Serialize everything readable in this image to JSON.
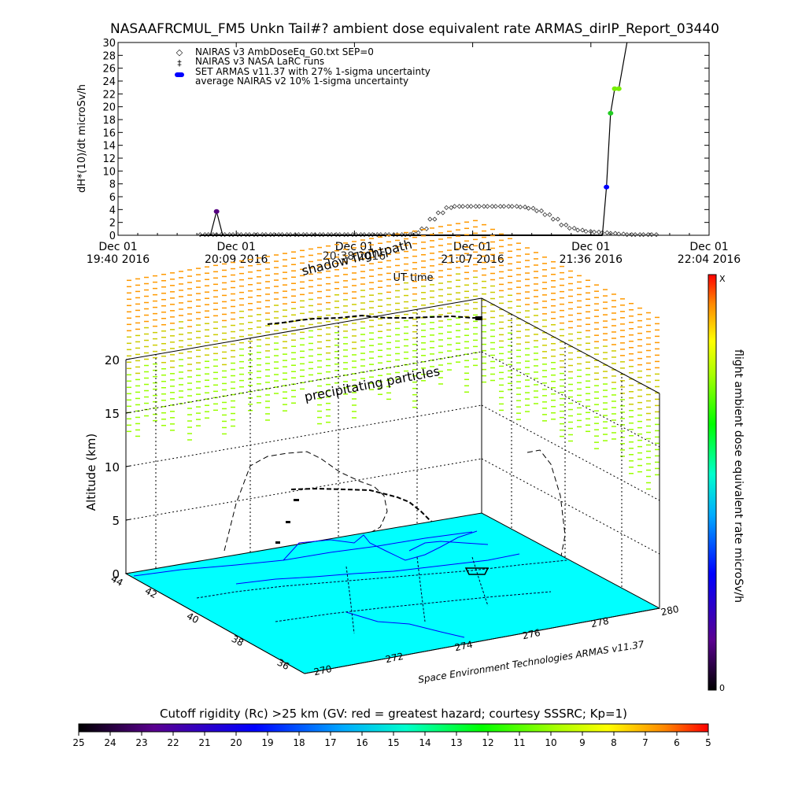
{
  "page": {
    "title": "NASAAFRCMUL_FM5 Unkn Tail#? ambient dose equivalent rate ARMAS_dirIP_Report_03440"
  },
  "chart_data": [
    {
      "type": "scatter",
      "name": "dose-rate-timeseries",
      "ylabel": "dH*(10)/dt microSv/h",
      "xlabel": "UT time",
      "ylim": [
        0,
        30
      ],
      "yticks": [
        0,
        2,
        4,
        6,
        8,
        10,
        12,
        14,
        16,
        18,
        20,
        22,
        24,
        26,
        28,
        30
      ],
      "xlim_minutes": [
        0,
        144
      ],
      "xticks": [
        {
          "line1": "Dec 01",
          "line2": "19:40 2016"
        },
        {
          "line1": "Dec 01",
          "line2": "20:09 2016"
        },
        {
          "line1": "Dec 01",
          "line2": "20:38 2016"
        },
        {
          "line1": "Dec 01",
          "line2": "21:07 2016"
        },
        {
          "line1": "Dec 01",
          "line2": "21:36 2016"
        },
        {
          "line1": "Dec 01",
          "line2": "22:04 2016"
        }
      ],
      "legend": {
        "placement": "top-left",
        "entries": [
          {
            "symbol": "◇",
            "label": "NAIRAS v3 AmbDoseEq_G0.txt SEP=0"
          },
          {
            "symbol": "‡",
            "label": "NAIRAS v3 NASA LaRC runs"
          },
          {
            "symbol": "●",
            "label": "SET ARMAS v11.37 with 27% 1-sigma uncertainty",
            "color": "#0000ff"
          },
          {
            "symbol": "",
            "label": "average NAIRAS v2 10% 1-sigma uncertainty"
          }
        ]
      },
      "nairas_v3_x": [
        20,
        22,
        24,
        26,
        28,
        30,
        32,
        34,
        36,
        38,
        40,
        42,
        44,
        46,
        48,
        50,
        52,
        54,
        56,
        58,
        60,
        62,
        64,
        66,
        68,
        70,
        72,
        74,
        76,
        78,
        80,
        82,
        84,
        86,
        88,
        90,
        92,
        94,
        96,
        98,
        100,
        102,
        104,
        106,
        108,
        110,
        112,
        114,
        116,
        118,
        120,
        122,
        124,
        126,
        128,
        130
      ],
      "nairas_v3_y": [
        0.1,
        0.1,
        0.1,
        0.1,
        0.1,
        0.1,
        0.1,
        0.1,
        0.1,
        0.1,
        0.1,
        0.1,
        0.1,
        0.1,
        0.1,
        0.1,
        0.1,
        0.1,
        0.1,
        0.1,
        0.1,
        0.1,
        0.1,
        0.1,
        0.1,
        0.1,
        0.4,
        1.0,
        2.5,
        3.5,
        4.3,
        4.5,
        4.5,
        4.5,
        4.5,
        4.5,
        4.5,
        4.5,
        4.5,
        4.4,
        4.2,
        3.8,
        3.2,
        2.5,
        1.6,
        1.1,
        0.8,
        0.6,
        0.5,
        0.4,
        0.3,
        0.2,
        0.1,
        0.1,
        0.1,
        0.1
      ],
      "armas_points": [
        {
          "x": 24,
          "y": 3.7,
          "color": "#550080"
        },
        {
          "x": 119,
          "y": 7.5,
          "color": "#0000ff"
        },
        {
          "x": 120,
          "y": 19.0,
          "color": "#22cc22"
        },
        {
          "x": 121,
          "y": 22.8,
          "color": "#77ee00"
        },
        {
          "x": 122,
          "y": 22.8,
          "color": "#77ee00"
        }
      ],
      "armas_line_x": [
        20,
        22.5,
        24,
        25.5,
        28,
        118,
        119,
        120,
        121,
        122,
        124
      ],
      "armas_line_y": [
        0,
        0,
        3.7,
        0,
        0,
        0,
        7.5,
        19.0,
        22.8,
        22.8,
        30
      ]
    },
    {
      "type": "scatter",
      "name": "3d-flight-track",
      "zlabel": "Altitude (km)",
      "zticks": [
        0,
        5,
        10,
        15,
        20
      ],
      "lat_ticks": [
        42,
        40,
        38,
        36
      ],
      "lat_top_label": "44",
      "lon_ticks": [
        270,
        272,
        274,
        276,
        278,
        280
      ],
      "annotations": [
        "shadow flightpath",
        "precipitating particles"
      ],
      "credit": "Space Environment Technologies ARMAS v11.37",
      "colorbar_label": "flight ambient dose equivalent rate microSv/h",
      "colorbar_top": "X",
      "colorbar_bottom": "0",
      "overlap_label": "20:38 2016"
    },
    {
      "type": "heatmap",
      "name": "cutoff-rigidity-scale",
      "title": "Cutoff rigidity (Rc) >25 km (GV: red = greatest hazard; courtesy SSSRC; Kp=1)",
      "ticks": [
        25,
        24,
        23,
        22,
        21,
        20,
        19,
        18,
        17,
        16,
        15,
        14,
        13,
        12,
        11,
        10,
        9,
        8,
        7,
        6,
        5
      ]
    }
  ],
  "colors": {
    "ground_plane": "#00ffff",
    "map_outline": "#0000ff",
    "orange_marks": "#ff9900",
    "yellow_marks": "#cccc00",
    "green_marks": "#99ff00"
  }
}
